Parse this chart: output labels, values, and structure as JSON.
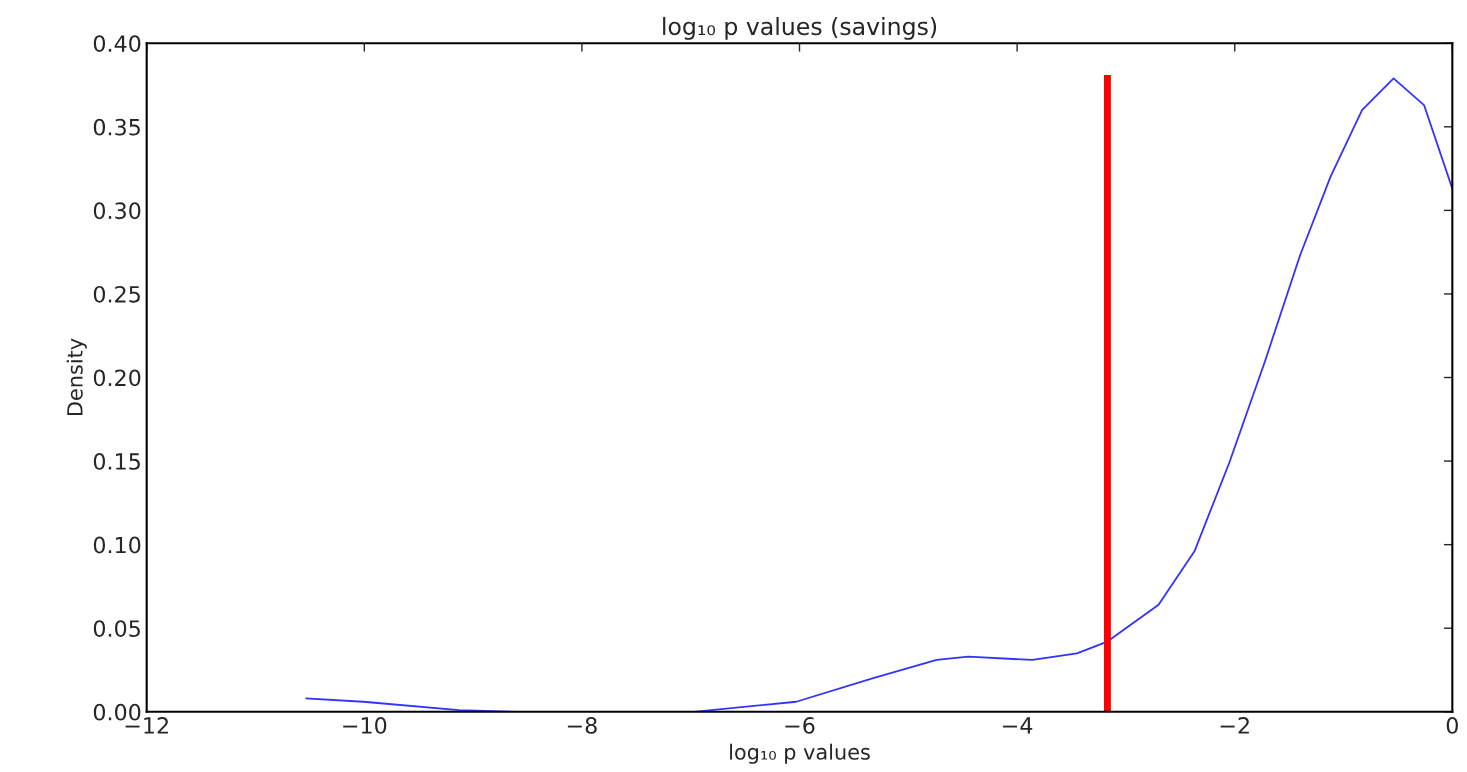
{
  "chart_data": {
    "type": "line",
    "title": "log₁₀ p values (savings)",
    "xlabel": "log₁₀ p values",
    "ylabel": "Density",
    "series": [
      {
        "color": "#3333ff",
        "x": [
          -10.54,
          -10.01,
          -9.13,
          -8.6,
          -6.97,
          -6.03,
          -5.33,
          -4.74,
          -4.45,
          -3.86,
          -3.45,
          -3.17,
          -2.7,
          -2.37,
          -2.05,
          -1.72,
          -1.4,
          -1.12,
          -0.83,
          -0.54,
          -0.26,
          0.0
        ],
        "values": [
          0.008,
          0.006,
          0.001,
          0.0,
          0.0,
          0.006,
          0.02,
          0.031,
          0.033,
          0.031,
          0.035,
          0.042,
          0.064,
          0.096,
          0.149,
          0.21,
          0.273,
          0.32,
          0.36,
          0.379,
          0.363,
          0.313
        ]
      },
      {
        "color": "#ff0000",
        "x": [
          -3.17,
          -3.17
        ],
        "values": [
          0.0,
          0.381
        ]
      }
    ],
    "xlim": [
      -12,
      0
    ],
    "ylim": [
      0,
      0.4
    ],
    "xticks": [
      {
        "value": -12,
        "label": "−12"
      },
      {
        "value": -10,
        "label": "−10"
      },
      {
        "value": -8,
        "label": "−8"
      },
      {
        "value": -6,
        "label": "−6"
      },
      {
        "value": -4,
        "label": "−4"
      },
      {
        "value": -2,
        "label": "−2"
      },
      0
    ],
    "yticks": [
      {
        "value": 0,
        "label": "0.00"
      },
      {
        "value": 0.05,
        "label": "0.05"
      },
      {
        "value": 0.1,
        "label": "0.10"
      },
      {
        "value": 0.15,
        "label": "0.15"
      },
      {
        "value": 0.2,
        "label": "0.20"
      },
      {
        "value": 0.25,
        "label": "0.25"
      },
      {
        "value": 0.3,
        "label": "0.30"
      },
      {
        "value": 0.35,
        "label": "0.35"
      },
      {
        "value": 0.4,
        "label": "0.40"
      }
    ],
    "grid": false,
    "legend": false
  }
}
